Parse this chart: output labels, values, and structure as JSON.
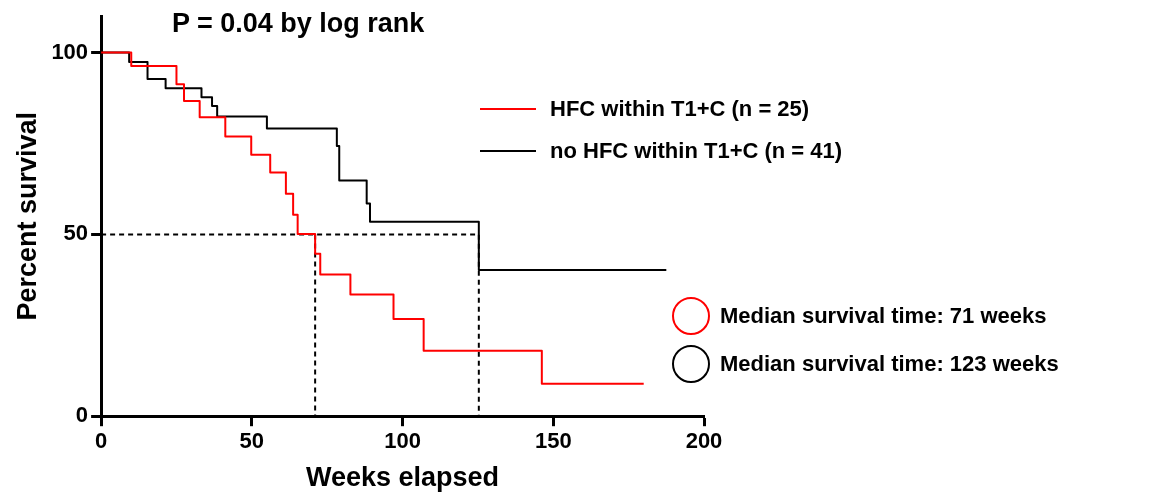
{
  "chart_data": {
    "type": "step",
    "xlabel": "Weeks elapsed",
    "ylabel": "Percent survival",
    "xlim": [
      0,
      200
    ],
    "xticks": [
      0,
      50,
      100,
      150,
      200
    ],
    "ylim": [
      0,
      110
    ],
    "yticks": [
      0,
      50,
      100
    ],
    "grid": false,
    "legend": "top right",
    "marker": "none",
    "annotations": [
      "P = 0.04 by log rank",
      "Median survival time: 71 weeks",
      "Median survival time: 123 weeks"
    ],
    "series": [
      {
        "name": "HFC within T1+C (n = 25)",
        "color": "#ff0000",
        "x": [
          0,
          10,
          25,
          27.5,
          32.7,
          41.2,
          49.8,
          56.1,
          61.3,
          63.7,
          65.2,
          71,
          72.7,
          82.7,
          97,
          107,
          146.2,
          180
        ],
        "values": [
          100,
          96.3,
          91.3,
          86.7,
          82.2,
          76.9,
          71.9,
          67,
          61.2,
          55.4,
          50.1,
          44.7,
          39,
          33.5,
          26.7,
          18,
          8.9,
          8.9
        ]
      },
      {
        "name": "no HFC within T1+C (n = 41)",
        "color": "#000000",
        "x": [
          0,
          9.3,
          15.4,
          21.4,
          33.3,
          36.8,
          38.5,
          55,
          78.2,
          79,
          88.1,
          89.2,
          125.3,
          187.5
        ],
        "values": [
          100,
          97.4,
          92.7,
          90.2,
          87.7,
          85.3,
          82.4,
          79.1,
          74.3,
          64.8,
          58.5,
          53.5,
          40.2,
          40.2
        ]
      },
      {
        "type": "line",
        "line_style": "dashed",
        "color": "#000000",
        "x": [
          0,
          125.3,
          125.3
        ],
        "values": [
          50,
          50,
          0
        ]
      },
      {
        "type": "line",
        "line_style": "dashed",
        "color": "#000000",
        "x": [
          71,
          71
        ],
        "values": [
          50,
          0
        ]
      }
    ]
  }
}
